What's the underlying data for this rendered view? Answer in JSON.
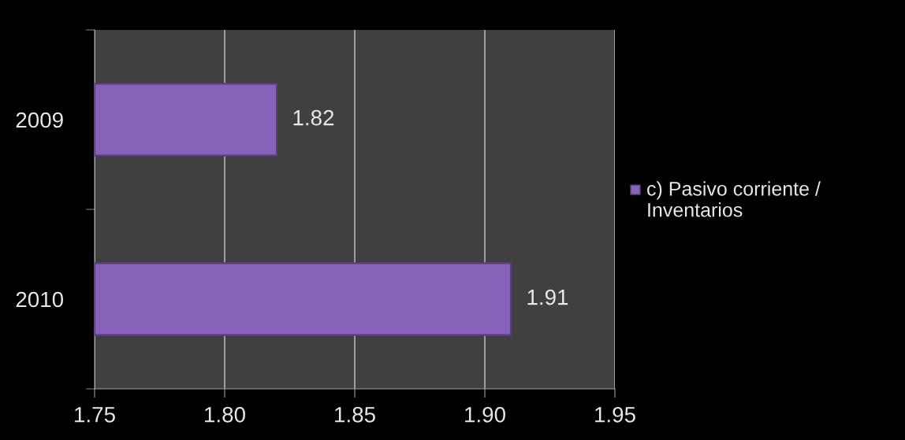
{
  "chart_data": {
    "type": "bar",
    "orientation": "horizontal",
    "categories": [
      "2009",
      "2010"
    ],
    "series": [
      {
        "name": "c) Pasivo corriente / Inventarios",
        "color": "#8862b8",
        "values": [
          1.82,
          1.91
        ]
      }
    ],
    "xlim": [
      1.75,
      1.95
    ],
    "xticks": [
      {
        "value": 1.75,
        "label": "1.75"
      },
      {
        "value": 1.8,
        "label": "1.80"
      },
      {
        "value": 1.85,
        "label": "1.85"
      },
      {
        "value": 1.9,
        "label": "1.90"
      },
      {
        "value": 1.95,
        "label": "1.95"
      }
    ],
    "grid": "x",
    "legend": "right",
    "data_labels": true
  }
}
